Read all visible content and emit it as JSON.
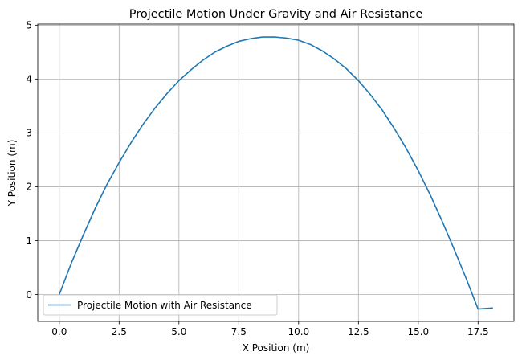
{
  "chart_data": {
    "type": "line",
    "title": "Projectile Motion Under Gravity and Air Resistance",
    "xlabel": "X Position (m)",
    "ylabel": "Y Position (m)",
    "xlim": [
      -0.9,
      19.0
    ],
    "ylim": [
      -0.5,
      5.02
    ],
    "xticks": [
      0.0,
      2.5,
      5.0,
      7.5,
      10.0,
      12.5,
      15.0,
      17.5
    ],
    "xtick_labels": [
      "0.0",
      "2.5",
      "5.0",
      "7.5",
      "10.0",
      "12.5",
      "15.0",
      "17.5"
    ],
    "yticks": [
      0,
      1,
      2,
      3,
      4,
      5
    ],
    "ytick_labels": [
      "0",
      "1",
      "2",
      "3",
      "4",
      "5"
    ],
    "grid": true,
    "legend_position": "lower-left",
    "series": [
      {
        "name": "Projectile Motion with Air Resistance",
        "color": "#1f77b4",
        "x": [
          0.0,
          0.5,
          1.0,
          1.5,
          2.0,
          2.5,
          3.0,
          3.5,
          4.0,
          4.5,
          5.0,
          5.5,
          6.0,
          6.5,
          7.0,
          7.5,
          8.0,
          8.5,
          9.0,
          9.25,
          9.5,
          10.0,
          10.5,
          11.0,
          11.5,
          12.0,
          12.5,
          13.0,
          13.5,
          14.0,
          14.5,
          15.0,
          15.5,
          16.0,
          16.5,
          17.0,
          17.5,
          18.1
        ],
        "y": [
          0.0,
          0.58,
          1.1,
          1.6,
          2.05,
          2.45,
          2.82,
          3.16,
          3.46,
          3.73,
          3.97,
          4.17,
          4.35,
          4.5,
          4.61,
          4.7,
          4.75,
          4.78,
          4.78,
          4.77,
          4.76,
          4.72,
          4.64,
          4.52,
          4.37,
          4.19,
          3.97,
          3.71,
          3.42,
          3.08,
          2.71,
          2.3,
          1.85,
          1.36,
          0.84,
          0.3,
          -0.27,
          -0.25
        ]
      }
    ]
  }
}
